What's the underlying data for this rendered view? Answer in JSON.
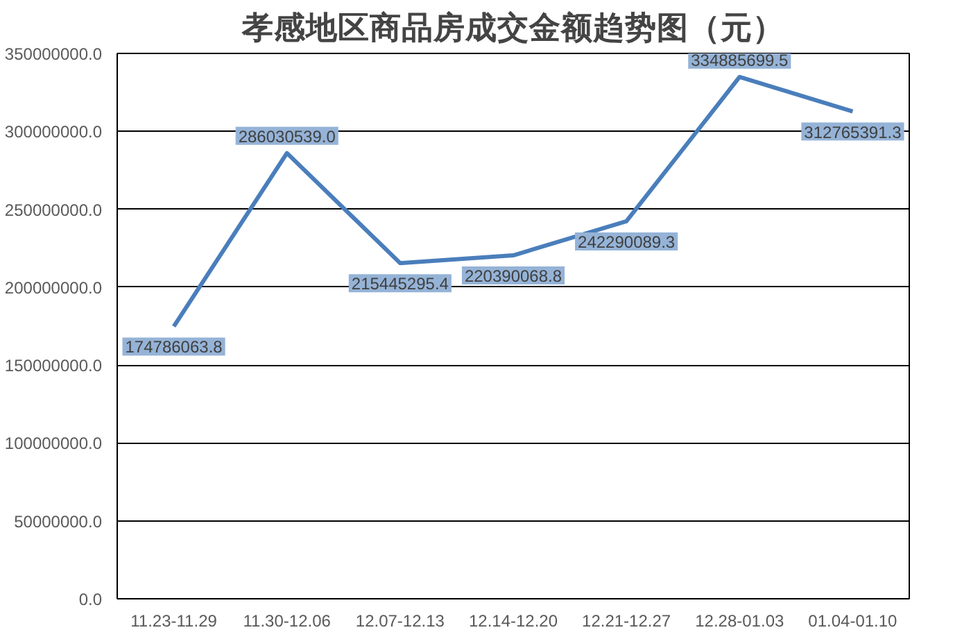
{
  "chart_data": {
    "type": "line",
    "title": "孝感地区商品房成交金额趋势图（元）",
    "categories": [
      "11.23-11.29",
      "11.30-12.06",
      "12.07-12.13",
      "12.14-12.20",
      "12.21-12.27",
      "12.28-01.03",
      "01.04-01.10"
    ],
    "series": [
      {
        "color": "#4a7ebb",
        "values": [
          174786063.8,
          286030539.0,
          215445295.4,
          220390068.8,
          242290089.3,
          334885699.5,
          312765391.3
        ],
        "value_labels": [
          "174786063.8",
          "286030539.0",
          "215445295.4",
          "220390068.8",
          "242290089.3",
          "334885699.5",
          "312765391.3"
        ]
      }
    ],
    "ylim": [
      0,
      350000000
    ],
    "yticks": [
      {
        "value": 0,
        "label": "0.0"
      },
      {
        "value": 50000000,
        "label": "50000000.0"
      },
      {
        "value": 100000000,
        "label": "100000000.0"
      },
      {
        "value": 150000000,
        "label": "150000000.0"
      },
      {
        "value": 200000000,
        "label": "200000000.0"
      },
      {
        "value": 250000000,
        "label": "250000000.0"
      },
      {
        "value": 300000000,
        "label": "300000000.0"
      },
      {
        "value": 350000000,
        "label": "350000000.0"
      }
    ],
    "grid": "y",
    "marker": "none",
    "line_style": "solid"
  }
}
